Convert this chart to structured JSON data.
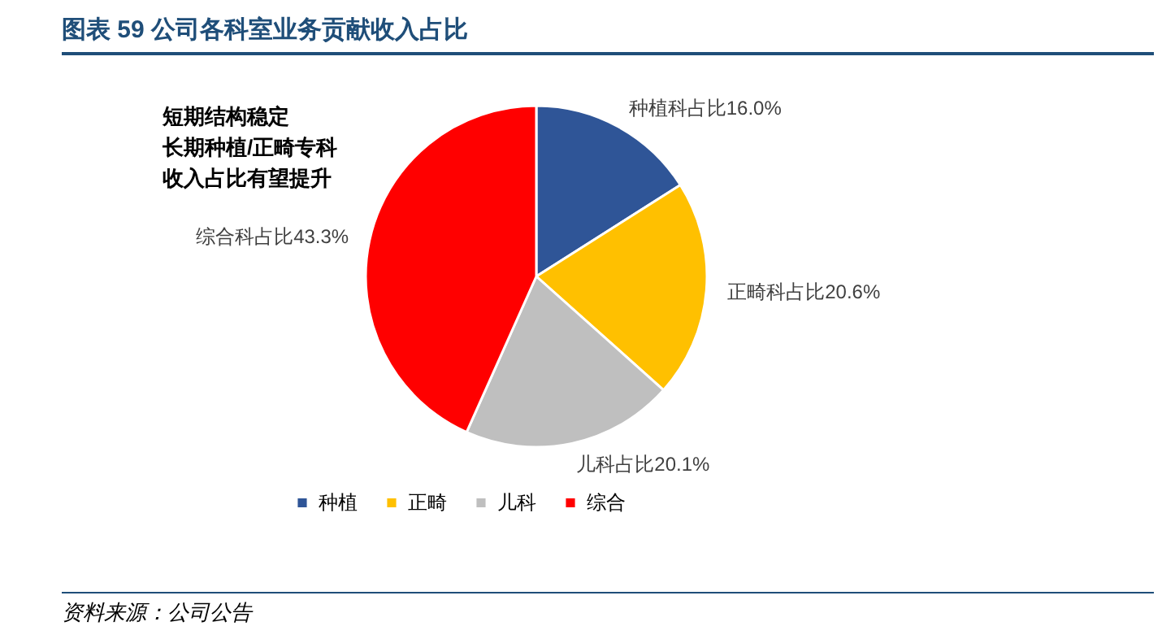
{
  "chart_data": {
    "type": "pie",
    "title": "图表 59   公司各科室业务贡献收入占比",
    "categories": [
      "种植",
      "正畸",
      "儿科",
      "综合"
    ],
    "values": [
      16.0,
      20.6,
      20.1,
      43.3
    ],
    "colors": [
      "#2f5597",
      "#ffc000",
      "#bfbfbf",
      "#ff0000"
    ],
    "value_labels": [
      "种植科占比16.0%",
      "正畸科占比20.6%",
      "儿科占比20.1%",
      "综合科占比43.3%"
    ],
    "legend": "bottom",
    "annotations": [
      "短期结构稳定",
      "长期种植/正畸专科",
      "收入占比有望提升",
      "资料来源：公司公告"
    ]
  }
}
